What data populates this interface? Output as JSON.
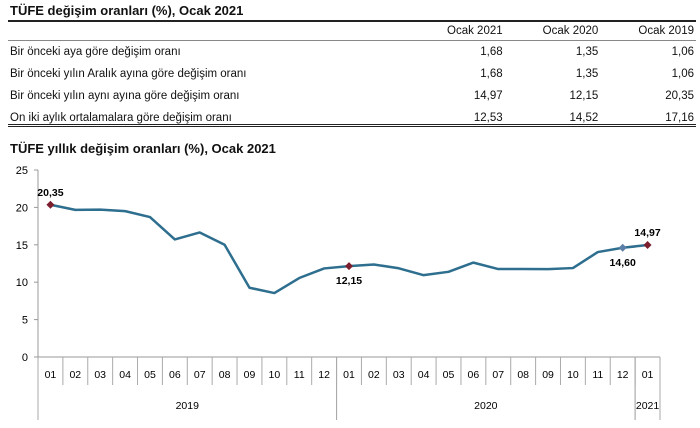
{
  "table": {
    "title": "TÜFE değişim oranları (%), Ocak 2021",
    "columns": [
      "Ocak 2021",
      "Ocak 2020",
      "Ocak 2019"
    ],
    "rows": [
      {
        "label": "Bir önceki aya göre değişim oranı",
        "values": [
          "1,68",
          "1,35",
          "1,06"
        ]
      },
      {
        "label": "Bir önceki yılın Aralık ayına göre değişim oranı",
        "values": [
          "1,68",
          "1,35",
          "1,06"
        ]
      },
      {
        "label": "Bir önceki yılın aynı ayına göre değişim oranı",
        "values": [
          "14,97",
          "12,15",
          "20,35"
        ]
      },
      {
        "label": "On iki aylık ortalamalara göre değişim oranı",
        "values": [
          "12,53",
          "14,52",
          "17,16"
        ]
      }
    ]
  },
  "chart_data": {
    "type": "line",
    "title": "TÜFE yıllık değişim oranları (%), Ocak 2021",
    "ylim": [
      0,
      25
    ],
    "yticks": [
      "0",
      "5",
      "10",
      "15",
      "20",
      "25"
    ],
    "categories": [
      "01",
      "02",
      "03",
      "04",
      "05",
      "06",
      "07",
      "08",
      "09",
      "10",
      "11",
      "12",
      "01",
      "02",
      "03",
      "04",
      "05",
      "06",
      "07",
      "08",
      "09",
      "10",
      "11",
      "12",
      "01"
    ],
    "years": [
      {
        "label": "2019",
        "count": 12
      },
      {
        "label": "2020",
        "count": 12
      },
      {
        "label": "2021",
        "count": 1
      }
    ],
    "values": [
      20.35,
      19.67,
      19.71,
      19.5,
      18.71,
      15.72,
      16.65,
      15.01,
      9.26,
      8.55,
      10.56,
      11.84,
      12.15,
      12.37,
      11.86,
      10.94,
      11.39,
      12.62,
      11.76,
      11.77,
      11.75,
      11.89,
      14.03,
      14.6,
      14.97
    ],
    "annotations": [
      {
        "index": 0,
        "label": "20,35",
        "pos": "above",
        "color": "#7b1e2e"
      },
      {
        "index": 12,
        "label": "12,15",
        "pos": "below",
        "color": "#7b1e2e"
      },
      {
        "index": 23,
        "label": "14,60",
        "pos": "below",
        "color": "#5b7fa8"
      },
      {
        "index": 24,
        "label": "14,97",
        "pos": "above",
        "color": "#7b1e2e"
      }
    ],
    "line_color": "#2e6e8e"
  }
}
